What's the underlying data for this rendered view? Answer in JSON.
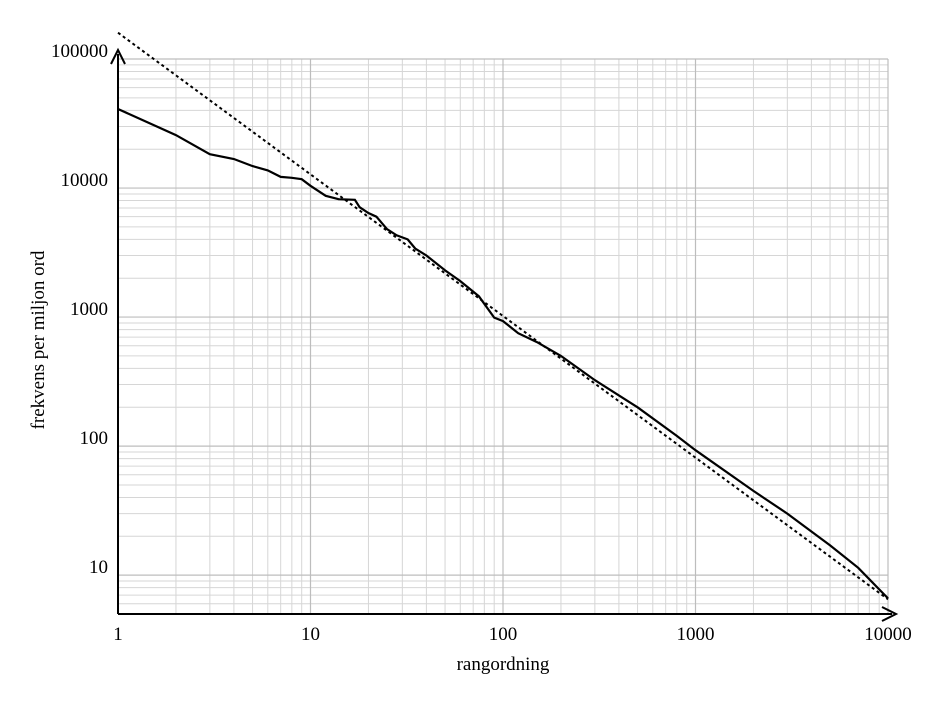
{
  "chart_data": {
    "type": "line",
    "xlabel": "rangordning",
    "ylabel": "frekvens per miljon ord",
    "xscale": "log",
    "yscale": "log",
    "xlim": [
      1,
      10000
    ],
    "ylim": [
      5,
      100000
    ],
    "xticks": [
      1,
      10,
      100,
      1000,
      10000
    ],
    "yticks": [
      10,
      100,
      1000,
      10000,
      100000
    ],
    "grid": true,
    "minor_grid": true,
    "series": [
      {
        "color": "#000000",
        "dash": "solid",
        "x": [
          1,
          2,
          3,
          4,
          5,
          6,
          7,
          8,
          9,
          10,
          12,
          14,
          17,
          18,
          20,
          22,
          25,
          28,
          32,
          35,
          40,
          50,
          60,
          75,
          90,
          100,
          120,
          150,
          200,
          300,
          500,
          800,
          1000,
          2000,
          3000,
          5000,
          7000,
          10000
        ],
        "values": [
          41000,
          25700,
          18300,
          16800,
          14800,
          13700,
          12200,
          12000,
          11700,
          10400,
          8700,
          8200,
          8100,
          7100,
          6400,
          6000,
          4800,
          4300,
          4000,
          3400,
          3000,
          2300,
          1900,
          1450,
          990,
          930,
          750,
          640,
          500,
          325,
          200,
          120,
          93,
          45,
          30,
          17,
          11.4,
          6.6
        ]
      },
      {
        "color": "#000000",
        "dash": "dotted",
        "x": [
          1,
          10000
        ],
        "values": [
          160000,
          6.5
        ]
      }
    ]
  }
}
